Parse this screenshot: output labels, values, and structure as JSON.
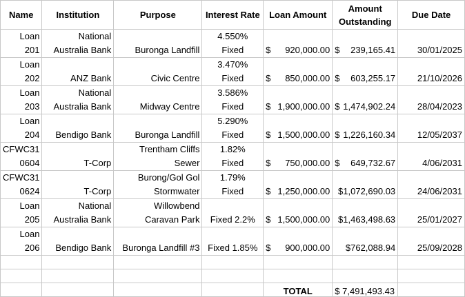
{
  "headers": {
    "name": "Name",
    "institution": "Institution",
    "purpose": "Purpose",
    "interest_rate": "Interest Rate",
    "loan_amount": "Loan Amount",
    "amount_outstanding": [
      "Amount",
      "Outstanding"
    ],
    "due_date": "Due Date"
  },
  "rows": [
    {
      "name": [
        "Loan",
        "201"
      ],
      "institution": [
        "National",
        "Australia Bank"
      ],
      "purpose": [
        "",
        "Buronga Landfill"
      ],
      "rate": [
        "4.550%",
        "Fixed"
      ],
      "loan_cur": "$",
      "loan": "920,000.00",
      "out_cur": "$",
      "out": "239,165.41",
      "due": "30/01/2025"
    },
    {
      "name": [
        "Loan",
        "202"
      ],
      "institution": [
        "",
        "ANZ Bank"
      ],
      "purpose": [
        "",
        "Civic Centre"
      ],
      "rate": [
        "3.470%",
        "Fixed"
      ],
      "loan_cur": "$",
      "loan": "850,000.00",
      "out_cur": "$",
      "out": "603,255.17",
      "due": "21/10/2026"
    },
    {
      "name": [
        "Loan",
        "203"
      ],
      "institution": [
        "National",
        "Australia Bank"
      ],
      "purpose": [
        "",
        "Midway Centre"
      ],
      "rate": [
        "3.586%",
        "Fixed"
      ],
      "loan_cur": "$",
      "loan": "1,900,000.00",
      "out_cur": "$",
      "out": "1,474,902.24",
      "due": "28/04/2023"
    },
    {
      "name": [
        "Loan",
        "204"
      ],
      "institution": [
        "",
        "Bendigo Bank"
      ],
      "purpose": [
        "",
        "Buronga Landfill"
      ],
      "rate": [
        "5.290%",
        "Fixed"
      ],
      "loan_cur": "$",
      "loan": "1,500,000.00",
      "out_cur": "$",
      "out": "1,226,160.34",
      "due": "12/05/2037"
    },
    {
      "name": [
        "CFWC31",
        "0604"
      ],
      "institution": [
        "",
        "T-Corp"
      ],
      "purpose": [
        "Trentham Cliffs",
        "Sewer"
      ],
      "rate": [
        "1.82%",
        "Fixed"
      ],
      "loan_cur": "$",
      "loan": "750,000.00",
      "out_cur": "$",
      "out": "649,732.67",
      "due": "4/06/2031"
    },
    {
      "name": [
        "CFWC31",
        "0624"
      ],
      "institution": [
        "",
        "T-Corp"
      ],
      "purpose": [
        "Burong/Gol Gol",
        "Stormwater"
      ],
      "rate": [
        "1.79%",
        "Fixed"
      ],
      "loan_cur": "$",
      "loan": "1,250,000.00",
      "out_cur": "",
      "out": "$1,072,690.03",
      "due": "24/06/2031"
    },
    {
      "name": [
        "Loan",
        "205"
      ],
      "institution": [
        "National",
        "Australia Bank"
      ],
      "purpose": [
        "Willowbend",
        "Caravan Park"
      ],
      "rate": [
        "",
        "Fixed 2.2%"
      ],
      "loan_cur": "$",
      "loan": "1,500,000.00",
      "out_cur": "",
      "out": "$1,463,498.63",
      "due": "25/01/2027"
    },
    {
      "name": [
        "Loan",
        "206"
      ],
      "institution": [
        "",
        "Bendigo Bank"
      ],
      "purpose": [
        "",
        "Buronga Landfill #3"
      ],
      "rate": [
        "",
        "Fixed 1.85%"
      ],
      "loan_cur": "$",
      "loan": "900,000.00",
      "out_cur": "",
      "out": "$762,088.94",
      "due": "25/09/2028"
    }
  ],
  "total": {
    "label": "TOTAL",
    "value": "$ 7,491,493.43"
  }
}
